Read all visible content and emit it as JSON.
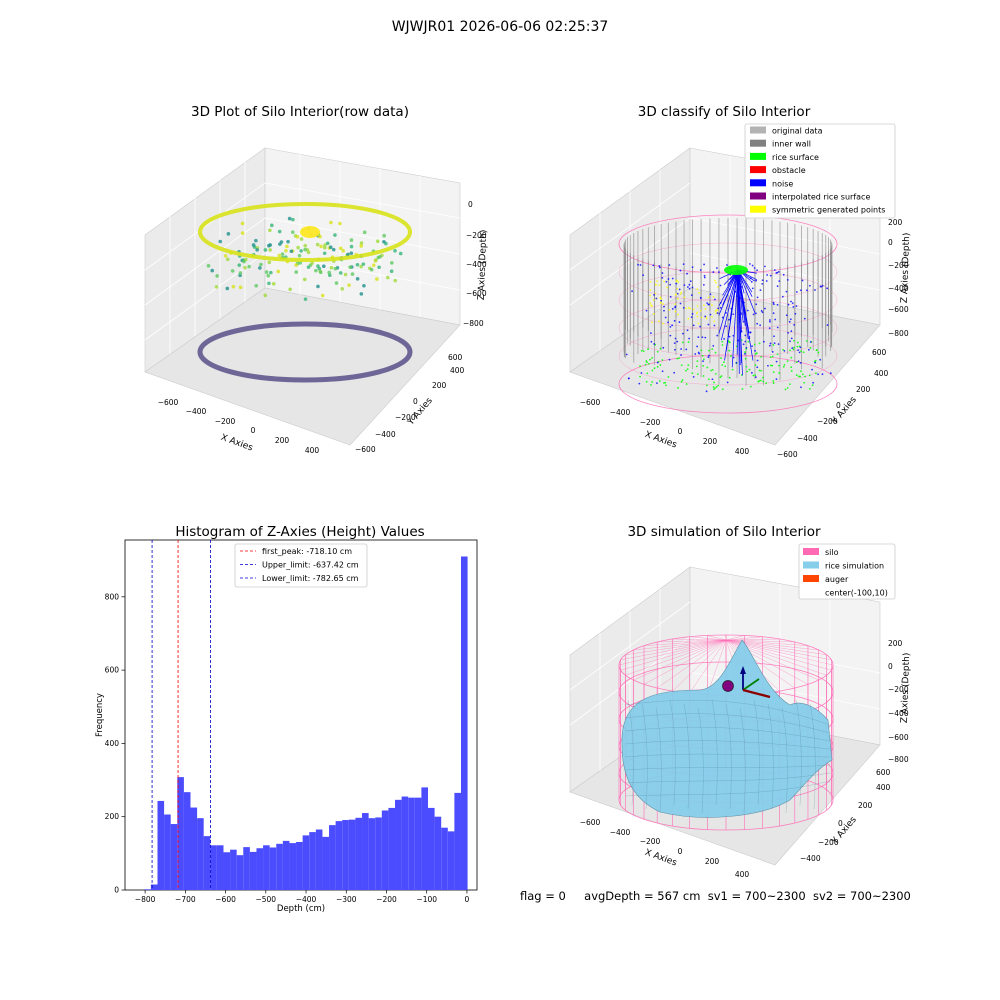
{
  "figure": {
    "suptitle": "WJWJR01 2026-06-06 02:25:37",
    "status": {
      "flag": "flag = 0",
      "avg_depth": "avgDepth = 567 cm",
      "sv1": "sv1 = 700~2300",
      "sv2": "sv2 = 700~2300"
    }
  },
  "colors": {
    "histogram_bar": "#4c4cff",
    "peak_line": "#ff0000",
    "limit_line": "#0000cc",
    "silo": "#ff69b4",
    "rice_simulation": "#87ceeb",
    "auger": "#ff4500",
    "original_data": "#b3b3b3",
    "inner_wall": "#808080",
    "rice_surface": "#00ff00",
    "obstacle": "#ff0000",
    "noise": "#0000ff",
    "interpolated_rice_surface": "#800080",
    "symmetric_generated_points": "#ffff00"
  },
  "chart_data": [
    {
      "type": "scatter",
      "title": "3D Plot of Silo Interior(row data)",
      "xlabel": "X Axies",
      "ylabel": "Y Axies",
      "zlabel": "Z Axies (Depth)",
      "x_ticks": [
        "−600",
        "−400",
        "−200",
        "0",
        "200",
        "400"
      ],
      "y_ticks": [
        "−600",
        "−400",
        "−200",
        "0",
        "200",
        "400",
        "600"
      ],
      "z_ticks": [
        "0",
        "−200",
        "−400",
        "−600",
        "−800"
      ],
      "xlim": [
        -700,
        500
      ],
      "ylim": [
        -650,
        650
      ],
      "zlim": [
        -900,
        0
      ],
      "colormap": "viridis"
    },
    {
      "type": "scatter",
      "title": "3D classify of Silo Interior",
      "xlabel": "X Axies",
      "ylabel": "Y Axies",
      "zlabel": "Z Axies (Depth)",
      "x_ticks": [
        "−600",
        "−400",
        "−200",
        "0",
        "200",
        "400"
      ],
      "y_ticks": [
        "−600",
        "−400",
        "−200",
        "0",
        "200",
        "400",
        "600"
      ],
      "z_ticks": [
        "200",
        "0",
        "−200",
        "−400",
        "−600",
        "−800"
      ],
      "legend_position": "top-right",
      "legend": [
        {
          "label": "original data",
          "color": "#b3b3b3"
        },
        {
          "label": "inner wall",
          "color": "#808080"
        },
        {
          "label": "rice surface",
          "color": "#00ff00"
        },
        {
          "label": "obstacle",
          "color": "#ff0000"
        },
        {
          "label": "noise",
          "color": "#0000ff"
        },
        {
          "label": "interpolated rice surface",
          "color": "#800080"
        },
        {
          "label": "symmetric generated points",
          "color": "#ffff00"
        }
      ]
    },
    {
      "type": "bar",
      "title": "Histogram of Z-Axies (Height) Values",
      "xlabel": "Depth (cm)",
      "ylabel": "Frequency",
      "xlim": [
        -850,
        25
      ],
      "ylim": [
        0,
        955
      ],
      "x_ticks": [
        {
          "value": -800,
          "label": "−800"
        },
        {
          "value": -700,
          "label": "−700"
        },
        {
          "value": -600,
          "label": "−600"
        },
        {
          "value": -500,
          "label": "−500"
        },
        {
          "value": -400,
          "label": "−400"
        },
        {
          "value": -300,
          "label": "−300"
        },
        {
          "value": -200,
          "label": "−200"
        },
        {
          "value": -100,
          "label": "−100"
        },
        {
          "value": 0,
          "label": "0"
        }
      ],
      "y_ticks": [
        {
          "value": 0,
          "label": "0"
        },
        {
          "value": 200,
          "label": "200"
        },
        {
          "value": 400,
          "label": "400"
        },
        {
          "value": 600,
          "label": "600"
        },
        {
          "value": 800,
          "label": "800"
        }
      ],
      "bin_start": -802,
      "bin_width": 16.4,
      "values": [
        2,
        15,
        243,
        206,
        180,
        308,
        267,
        225,
        196,
        147,
        122,
        122,
        103,
        110,
        95,
        117,
        104,
        114,
        122,
        116,
        126,
        134,
        128,
        131,
        149,
        158,
        165,
        145,
        177,
        188,
        191,
        192,
        197,
        210,
        196,
        198,
        217,
        224,
        246,
        255,
        252,
        252,
        280,
        224,
        200,
        170,
        160,
        265,
        910
      ],
      "vlines": [
        {
          "label": "first_peak: -718.10 cm",
          "value": -718.1,
          "color": "#ff0000"
        },
        {
          "label": "Upper_limit: -637.42 cm",
          "value": -637.42,
          "color": "#0000cc"
        },
        {
          "label": "Lower_limit: -782.65 cm",
          "value": -782.65,
          "color": "#0000cc"
        }
      ],
      "legend_position": "top-center"
    },
    {
      "type": "area",
      "title": "3D simulation of Silo Interior",
      "xlabel": "X Axies",
      "ylabel": "Y Axies",
      "zlabel": "Z Axies (Depth)",
      "x_ticks": [
        "−600",
        "−400",
        "−200",
        "0",
        "200",
        "400"
      ],
      "y_ticks": [
        "−400",
        "−200",
        "0",
        "200",
        "400",
        "600"
      ],
      "z_ticks": [
        "200",
        "0",
        "−200",
        "−400",
        "−600",
        "−800"
      ],
      "legend_position": "top-right",
      "legend": [
        {
          "label": "silo",
          "color": "#ff69b4"
        },
        {
          "label": "rice simulation",
          "color": "#87ceeb"
        },
        {
          "label": "auger",
          "color": "#ff4500"
        },
        {
          "label": "center(-100,10)",
          "color": ""
        }
      ]
    }
  ]
}
